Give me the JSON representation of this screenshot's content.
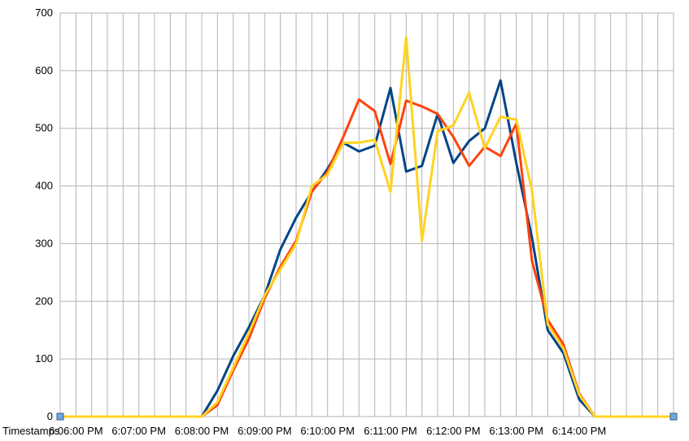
{
  "chart_data": {
    "type": "line",
    "xlabel": "Timestamps",
    "ylabel": "",
    "ylim": [
      0,
      700
    ],
    "yticks": [
      0,
      100,
      200,
      300,
      400,
      500,
      600,
      700
    ],
    "x_tick_labels": [
      "6:06:00 PM",
      "6:07:00 PM",
      "6:08:00 PM",
      "6:09:00 PM",
      "6:10:00 PM",
      "6:11:00 PM",
      "6:12:00 PM",
      "6:13:00 PM",
      "6:14:00 PM"
    ],
    "grid": true,
    "legend": "none",
    "x_start": "6:05:40 PM",
    "x_interval_seconds": 15,
    "colors": {
      "series1": "#004586",
      "series2": "#ff420e",
      "series3": "#ffd320"
    },
    "series": [
      {
        "color": "#004586",
        "values": [
          0,
          0,
          0,
          0,
          0,
          0,
          0,
          0,
          0,
          0,
          45,
          105,
          155,
          210,
          290,
          345,
          390,
          430,
          475,
          460,
          470,
          570,
          425,
          435,
          525,
          440,
          478,
          500,
          583,
          440,
          310,
          150,
          110,
          30,
          0,
          0,
          0,
          0,
          0,
          0
        ]
      },
      {
        "color": "#ff420e",
        "values": [
          0,
          0,
          0,
          0,
          0,
          0,
          0,
          0,
          0,
          0,
          20,
          80,
          135,
          205,
          260,
          305,
          390,
          425,
          485,
          550,
          530,
          438,
          548,
          538,
          525,
          485,
          435,
          468,
          452,
          508,
          270,
          168,
          125,
          40,
          0,
          0,
          0,
          0,
          0,
          0
        ]
      },
      {
        "color": "#ffd320",
        "values": [
          0,
          0,
          0,
          0,
          0,
          0,
          0,
          0,
          0,
          0,
          25,
          85,
          145,
          210,
          255,
          300,
          400,
          420,
          475,
          475,
          480,
          390,
          658,
          305,
          495,
          505,
          562,
          465,
          520,
          515,
          392,
          160,
          118,
          38,
          0,
          0,
          0,
          0,
          0,
          0
        ]
      }
    ]
  }
}
